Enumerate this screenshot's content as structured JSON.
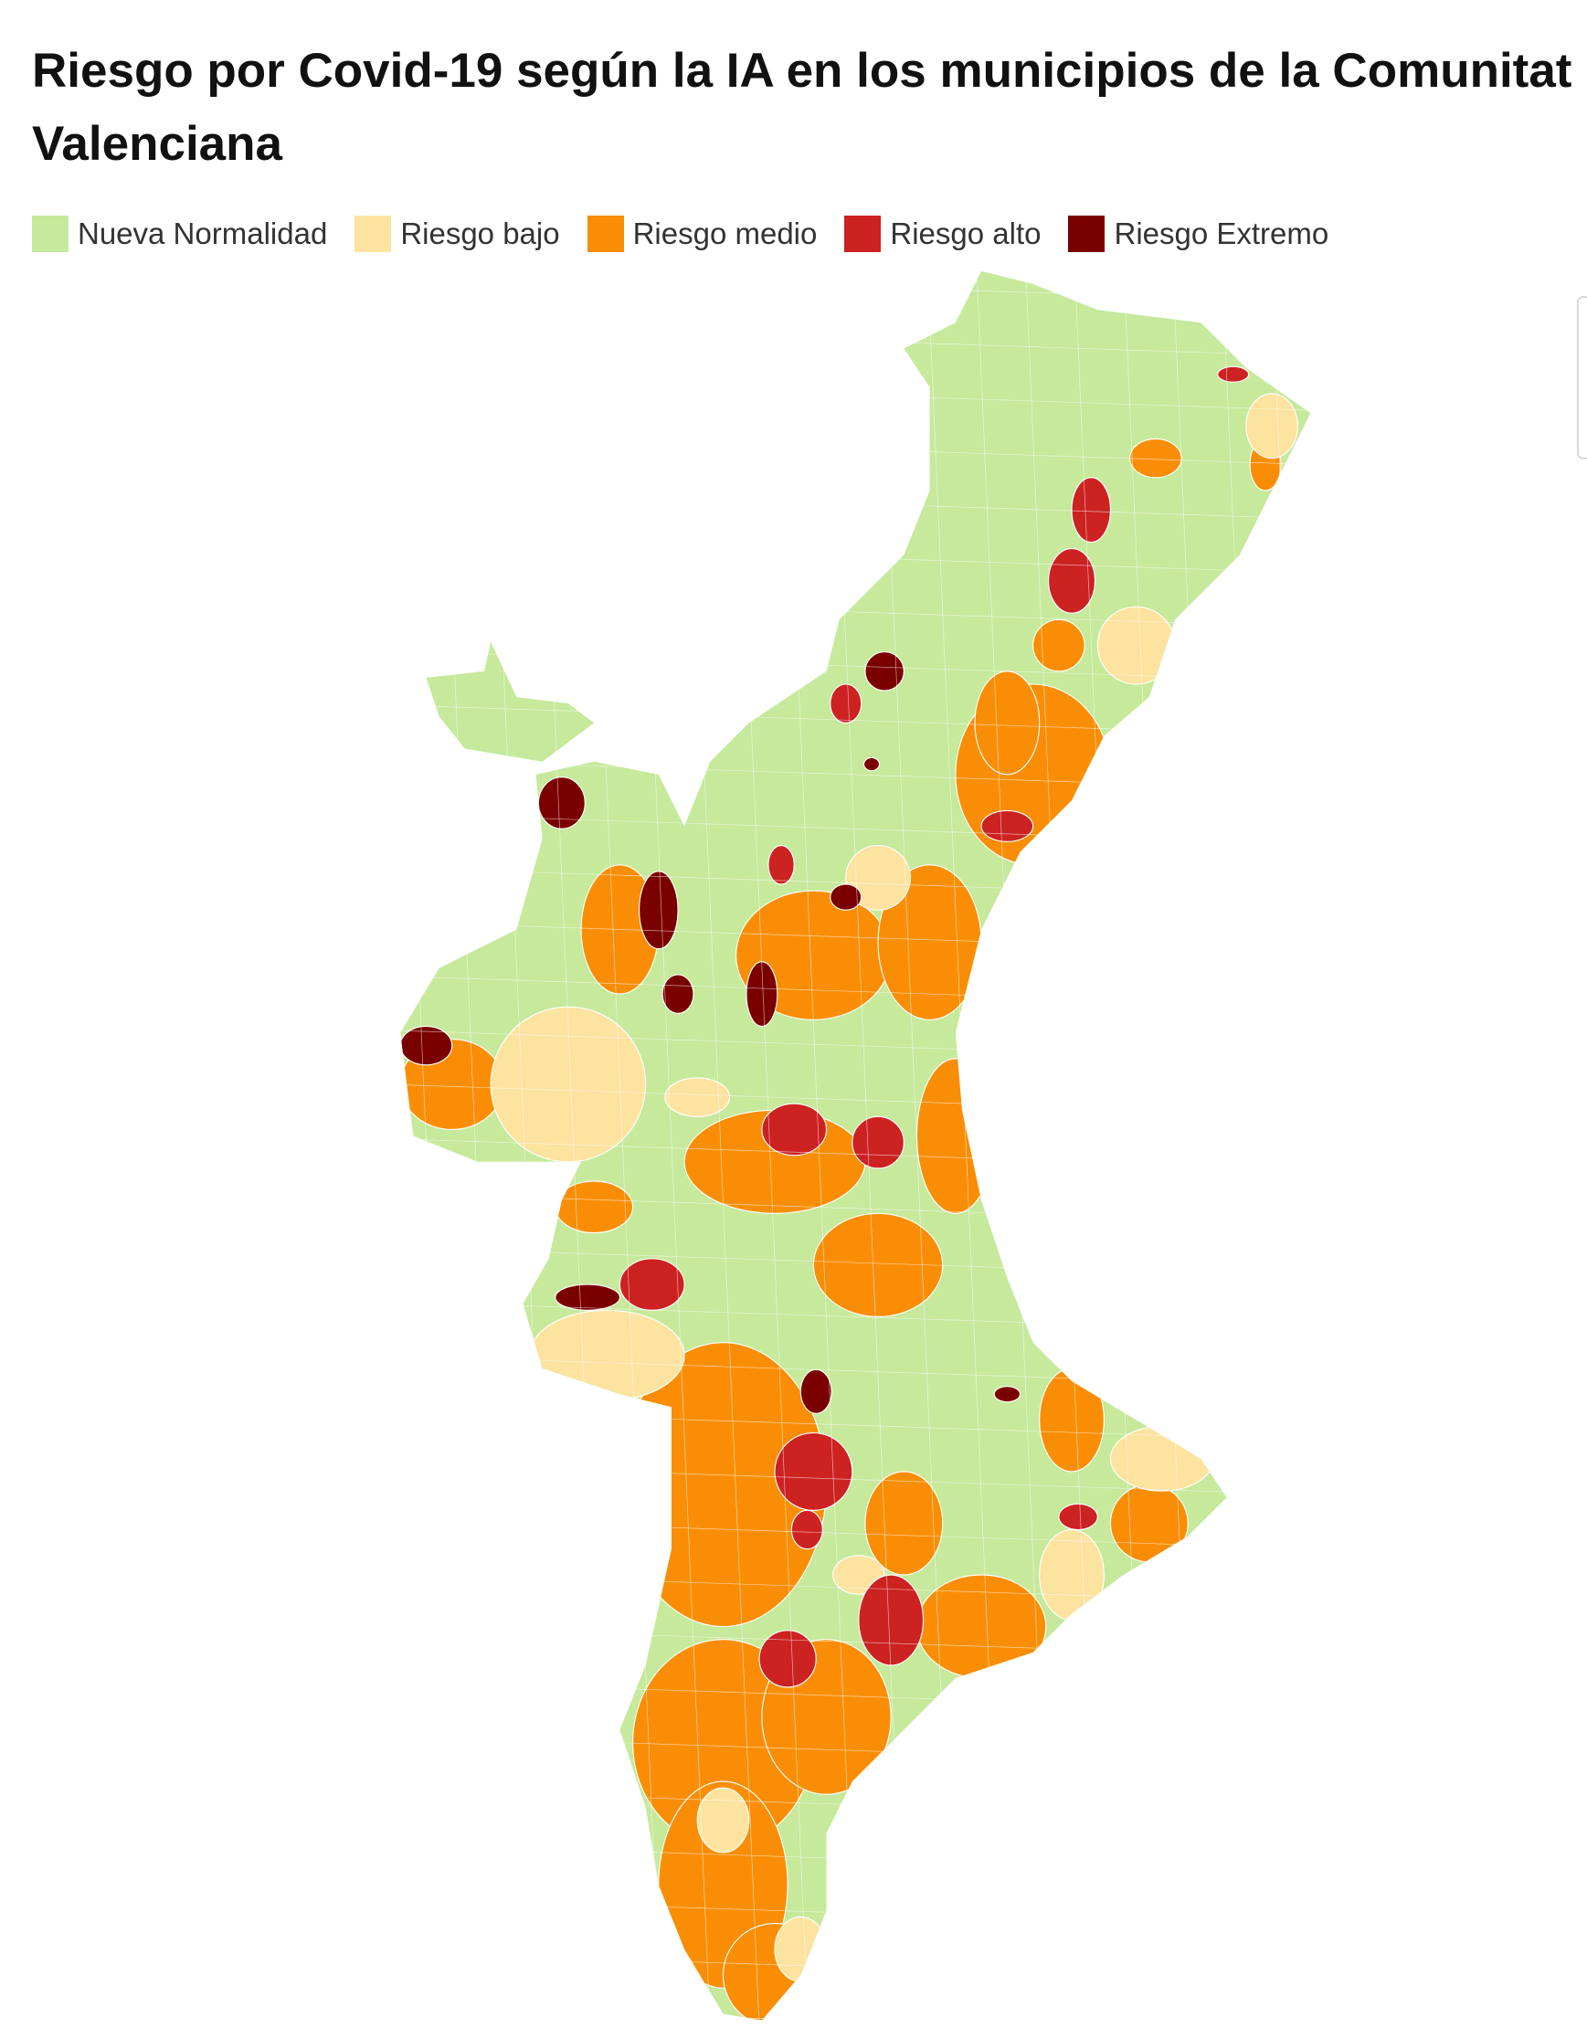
{
  "title": "Riesgo por Covid-19 según la IA en los municipios de la Comunitat Valenciana",
  "legend": {
    "items": [
      {
        "name": "Nueva Normalidad",
        "color": "#c6e99c"
      },
      {
        "name": "Riesgo bajo",
        "color": "#fde3a0"
      },
      {
        "name": "Riesgo medio",
        "color": "#f98e06"
      },
      {
        "name": "Riesgo alto",
        "color": "#cc2222"
      },
      {
        "name": "Riesgo Extremo",
        "color": "#7a0000"
      }
    ]
  }
}
